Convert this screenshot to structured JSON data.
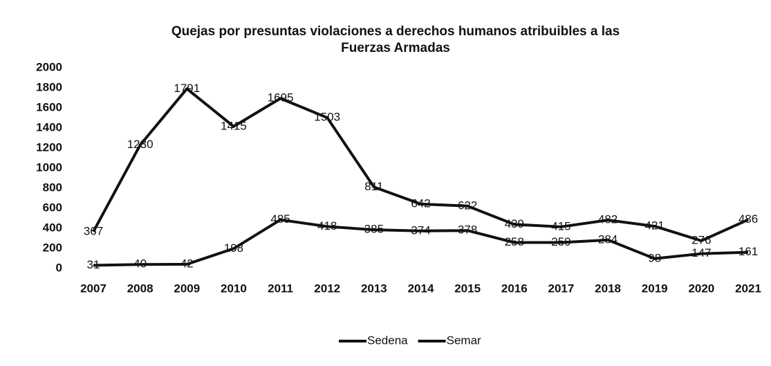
{
  "chart_data": {
    "type": "line",
    "title": "Quejas por presuntas violaciones a derechos humanos atribuibles a las Fuerzas Armadas",
    "categories": [
      "2007",
      "2008",
      "2009",
      "2010",
      "2011",
      "2012",
      "2013",
      "2014",
      "2015",
      "2016",
      "2017",
      "2018",
      "2019",
      "2020",
      "2021"
    ],
    "series": [
      {
        "name": "Sedena",
        "color": "#111111",
        "values": [
          367,
          1230,
          1791,
          1415,
          1695,
          1503,
          811,
          642,
          622,
          439,
          415,
          482,
          421,
          276,
          486
        ]
      },
      {
        "name": "Semar",
        "color": "#111111",
        "values": [
          31,
          40,
          42,
          198,
          485,
          418,
          385,
          374,
          378,
          258,
          259,
          284,
          98,
          147,
          161
        ]
      }
    ],
    "ylim": [
      0,
      2000
    ],
    "yticks": [
      0,
      200,
      400,
      600,
      800,
      1000,
      1200,
      1400,
      1600,
      1800,
      2000
    ],
    "legend": "bottom"
  }
}
